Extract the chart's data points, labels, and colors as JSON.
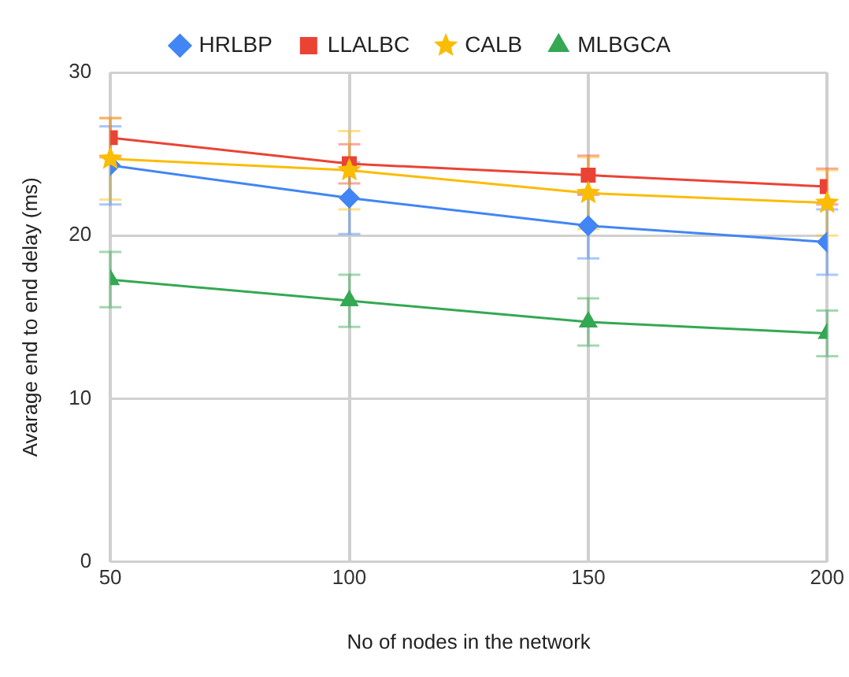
{
  "chart_data": {
    "type": "line",
    "xlabel": "No of nodes in the network",
    "ylabel": "Avarage end to end delay (ms)",
    "x": [
      50,
      100,
      150,
      200
    ],
    "xlim": [
      50,
      200
    ],
    "xticks": [
      50,
      100,
      150,
      200
    ],
    "ylim": [
      0,
      30
    ],
    "yticks": [
      0,
      10,
      20,
      30
    ],
    "grid": true,
    "legend": "top",
    "line_style": "solid",
    "series": [
      {
        "name": "HRLBP",
        "color": "#4285f4",
        "marker": "diamond",
        "values": [
          24.3,
          22.3,
          20.6,
          19.6
        ],
        "errors": [
          2.4,
          2.2,
          2.0,
          2.0
        ]
      },
      {
        "name": "LLALBC",
        "color": "#ea4335",
        "marker": "square",
        "values": [
          26.0,
          24.4,
          23.7,
          23.0
        ],
        "errors": [
          1.2,
          1.2,
          1.2,
          1.1
        ]
      },
      {
        "name": "CALB",
        "color": "#fbbc04",
        "marker": "star",
        "values": [
          24.7,
          24.0,
          22.6,
          22.0
        ],
        "errors": [
          2.5,
          2.4,
          2.2,
          2.0
        ]
      },
      {
        "name": "MLBGCA",
        "color": "#34a853",
        "marker": "triangle",
        "values": [
          17.3,
          16.0,
          14.7,
          14.0
        ],
        "errors": [
          1.7,
          1.6,
          1.45,
          1.4
        ]
      }
    ]
  }
}
